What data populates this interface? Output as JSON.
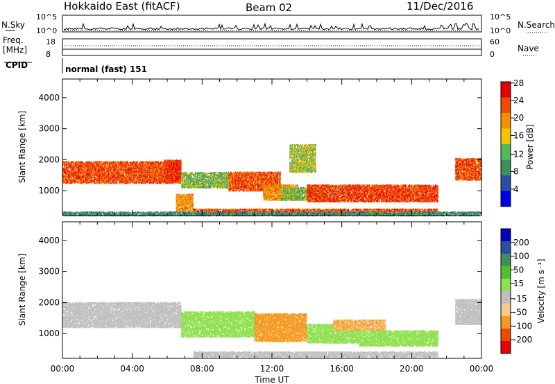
{
  "header": {
    "title": "Hokkaido East (fitACF)",
    "beam": "Beam 02",
    "date": "11/Dec/2016"
  },
  "noise_panel": {
    "left_label": "N.Sky",
    "right_label": "N.Search",
    "left_ticks": [
      "10^5",
      "10^0"
    ],
    "right_ticks": [
      "10^5",
      "10^0"
    ]
  },
  "freq_panel": {
    "left_label_1": "Freq.",
    "left_label_2": "[MHz]",
    "right_label": "Nave",
    "left_ticks": [
      "18",
      "8"
    ],
    "right_ticks": [
      "60",
      "0"
    ]
  },
  "cpid": {
    "label": "CPID",
    "value": "normal (fast) 151"
  },
  "x_axis": {
    "label": "Time UT",
    "ticks": [
      "00:00",
      "04:00",
      "08:00",
      "12:00",
      "16:00",
      "20:00",
      "00:00"
    ]
  },
  "colors": {
    "power": [
      "#0000e6",
      "#2b4fa0",
      "#3f8f5a",
      "#56b85a",
      "#f5c400",
      "#f58f00",
      "#f04a00",
      "#e80000"
    ],
    "velocity": [
      "#e80000",
      "#f04a00",
      "#f59a20",
      "#f5c890",
      "#c0c0c0",
      "#90e050",
      "#50c030",
      "#3f8f5a",
      "#2b4fa0",
      "#0000c0"
    ]
  },
  "chart_data": [
    {
      "type": "heatmap",
      "name": "power",
      "x_range_hours": [
        0,
        24
      ],
      "ylabel": "Slant Range [km]",
      "ylim": [
        200,
        4600
      ],
      "y_ticks": [
        "1000",
        "2000",
        "3000",
        "4000"
      ],
      "colorbar_label": "Power [dB]",
      "colorbar_ticks": [
        "4",
        "8",
        "12",
        "16",
        "20",
        "24",
        "28"
      ],
      "regions": [
        {
          "t0": 0.0,
          "t1": 6.8,
          "r0": 1250,
          "r1": 1950,
          "value": 26
        },
        {
          "t0": 5.8,
          "t1": 6.8,
          "r0": 1300,
          "r1": 2000,
          "value": 28
        },
        {
          "t0": 6.5,
          "t1": 7.5,
          "r0": 350,
          "r1": 900,
          "value": 22
        },
        {
          "t0": 6.8,
          "t1": 9.5,
          "r0": 1100,
          "r1": 1600,
          "value": 14
        },
        {
          "t0": 9.5,
          "t1": 12.5,
          "r0": 1000,
          "r1": 1600,
          "value": 26
        },
        {
          "t0": 11.5,
          "t1": 13.5,
          "r0": 700,
          "r1": 1200,
          "value": 22
        },
        {
          "t0": 12.5,
          "t1": 15.0,
          "r0": 700,
          "r1": 1100,
          "value": 14
        },
        {
          "t0": 14.0,
          "t1": 21.5,
          "r0": 650,
          "r1": 1200,
          "value": 27
        },
        {
          "t0": 7.5,
          "t1": 21.5,
          "r0": 250,
          "r1": 420,
          "value": 26
        },
        {
          "t0": 22.5,
          "t1": 24.0,
          "r0": 1350,
          "r1": 2050,
          "value": 26
        },
        {
          "t0": 13.0,
          "t1": 14.5,
          "r0": 1600,
          "r1": 2500,
          "value": 16
        },
        {
          "t0": 0.0,
          "t1": 24.0,
          "r0": 200,
          "r1": 320,
          "value": 10
        }
      ]
    },
    {
      "type": "heatmap",
      "name": "velocity",
      "x_range_hours": [
        0,
        24
      ],
      "ylabel": "Slant Range [km]",
      "ylim": [
        200,
        4600
      ],
      "y_ticks": [
        "1000",
        "2000",
        "3000",
        "4000"
      ],
      "colorbar_label": "Velocity [m s⁻¹]",
      "colorbar_ticks": [
        "200",
        "100",
        "50",
        "15",
        "-15",
        "-50",
        "-100",
        "-200"
      ],
      "regions": [
        {
          "t0": 0.0,
          "t1": 6.8,
          "r0": 1200,
          "r1": 2000,
          "value": 0
        },
        {
          "t0": 6.8,
          "t1": 11.0,
          "r0": 900,
          "r1": 1700,
          "value": 40
        },
        {
          "t0": 11.0,
          "t1": 14.0,
          "r0": 750,
          "r1": 1650,
          "value": -60
        },
        {
          "t0": 14.0,
          "t1": 17.0,
          "r0": 700,
          "r1": 1300,
          "value": 40
        },
        {
          "t0": 15.5,
          "t1": 18.5,
          "r0": 1100,
          "r1": 1450,
          "value": -50
        },
        {
          "t0": 17.0,
          "t1": 21.5,
          "r0": 600,
          "r1": 1100,
          "value": 45
        },
        {
          "t0": 22.5,
          "t1": 24.0,
          "r0": 1300,
          "r1": 2100,
          "value": 0
        },
        {
          "t0": 7.5,
          "t1": 21.5,
          "r0": 250,
          "r1": 420,
          "value": 0
        }
      ]
    }
  ]
}
